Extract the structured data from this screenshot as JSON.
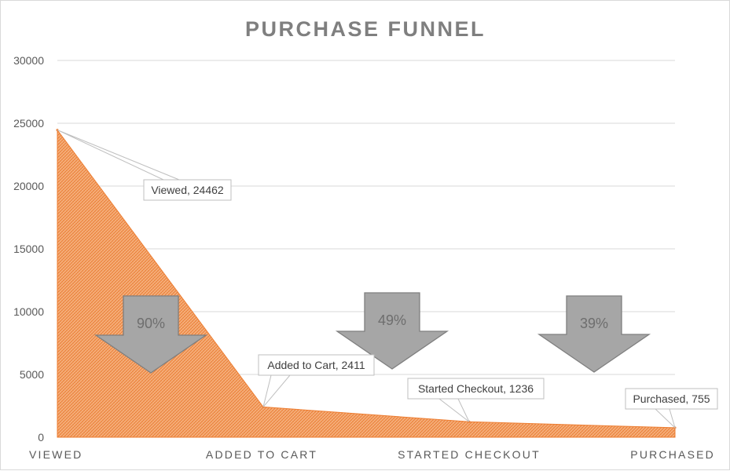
{
  "chart_data": {
    "type": "area",
    "title": "PURCHASE FUNNEL",
    "categories": [
      "VIEWED",
      "ADDED TO CART",
      "STARTED CHECKOUT",
      "PURCHASED"
    ],
    "series": [
      {
        "values": [
          24462,
          2411,
          1236,
          755
        ]
      }
    ],
    "data_labels": [
      "Viewed, 24462",
      "Added to Cart, 2411",
      "Started Checkout, 1236",
      "Purchased, 755"
    ],
    "conversion_arrows": [
      "90%",
      "49%",
      "39%"
    ],
    "ylim": [
      0,
      30000
    ],
    "yticks": [
      0,
      5000,
      10000,
      15000,
      20000,
      25000,
      30000
    ],
    "grid": true,
    "legend": "none",
    "colors": {
      "area_fill": "#f4a46b",
      "area_hatch": "#ed7d31",
      "arrow_fill": "#a6a6a6",
      "arrow_stroke": "#7f7f7f",
      "grid": "#d9d9d9",
      "title": "#7f7f7f"
    }
  }
}
